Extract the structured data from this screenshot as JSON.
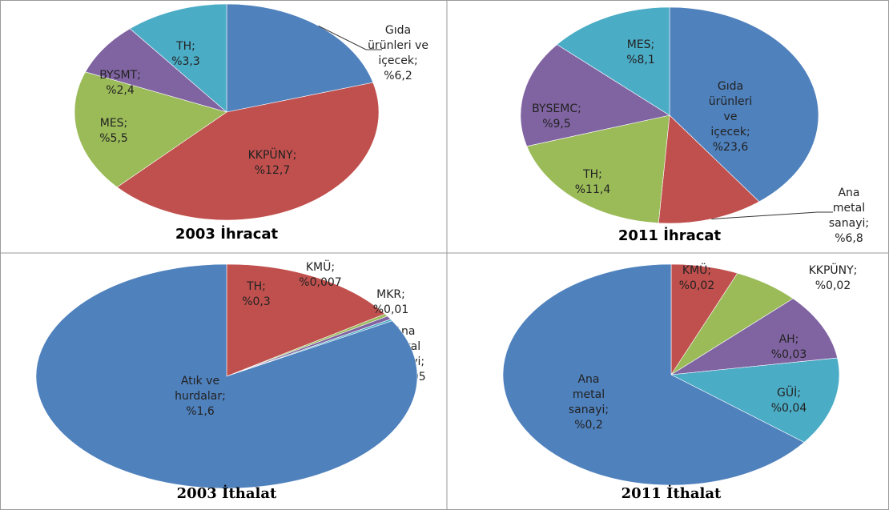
{
  "chart_data": [
    {
      "type": "pie",
      "title": "2003 İhracat",
      "values": [
        6.2,
        12.7,
        5.5,
        2.4,
        3.3
      ],
      "value_labels": [
        "Gıda ürünleri ve içecek; %6,2",
        "KKPÜNY; %12,7",
        "MES; %5,5",
        "BYSMT; %2,4",
        "TH; %3,3"
      ],
      "colors": [
        "#4f81bd",
        "#c0504d",
        "#9bbb59",
        "#8064a2",
        "#4bacc6"
      ]
    },
    {
      "type": "pie",
      "title": "2011 İhracat",
      "values": [
        23.6,
        6.8,
        11.4,
        9.5,
        8.1
      ],
      "value_labels": [
        "Gıda ürünleri ve içecek; %23,6",
        "Ana metal sanayi; %6,8",
        "TH; %11,4",
        "BYSEMC; %9,5",
        "MES; %8,1"
      ],
      "colors": [
        "#4f81bd",
        "#c0504d",
        "#9bbb59",
        "#8064a2",
        "#4bacc6"
      ]
    },
    {
      "type": "pie",
      "title": "2003 İthalat",
      "values": [
        0.3,
        0.007,
        0.01,
        0.005,
        1.6
      ],
      "value_labels": [
        "TH; %0,3",
        "KMÜ; %0,007",
        "MKR; %0,01",
        "Ana metal sanayi; %0,005",
        "Atık ve hurdalar; %1,6"
      ],
      "colors": [
        "#c0504d",
        "#9bbb59",
        "#8064a2",
        "#4bacc6",
        "#4f81bd"
      ]
    },
    {
      "type": "pie",
      "title": "2011 İthalat",
      "values": [
        0.02,
        0.02,
        0.03,
        0.04,
        0.2
      ],
      "value_labels": [
        "KMÜ; %0,02",
        "KKPÜNY; %0,02",
        "AH; %0,03",
        "GÜİ; %0,04",
        "Ana metal sanayi; %0,2"
      ],
      "colors": [
        "#c0504d",
        "#9bbb59",
        "#8064a2",
        "#4bacc6",
        "#4f81bd"
      ]
    }
  ]
}
